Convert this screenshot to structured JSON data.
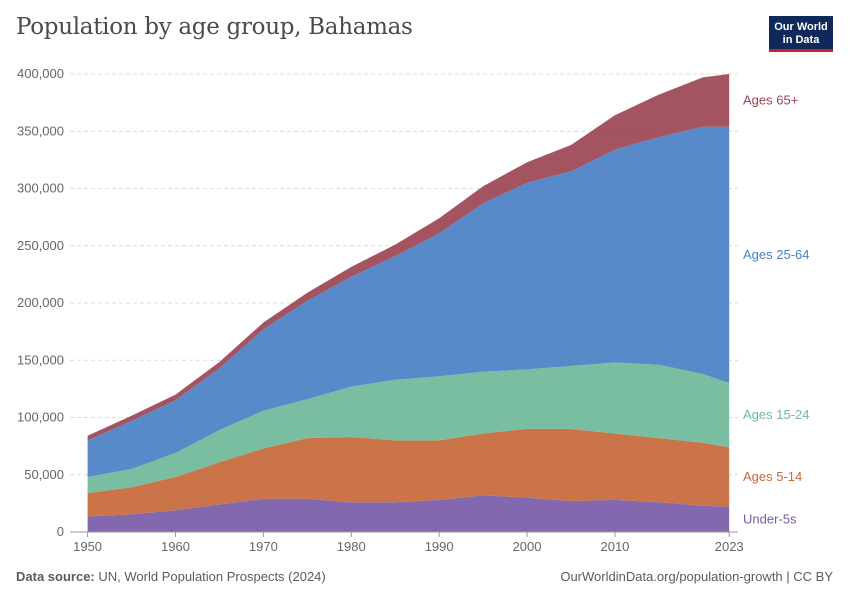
{
  "header": {
    "title": "Population by age group, Bahamas",
    "logo_line1": "Our World",
    "logo_line2": "in Data"
  },
  "footer": {
    "source_label": "Data source:",
    "source_text": "UN, World Population Prospects (2024)",
    "url_text": "OurWorldinData.org/population-growth | CC BY"
  },
  "chart_data": {
    "type": "area",
    "stacked": true,
    "title": "Population by age group, Bahamas",
    "x": [
      1950,
      1955,
      1960,
      1965,
      1970,
      1975,
      1980,
      1985,
      1990,
      1995,
      2000,
      2005,
      2010,
      2015,
      2020,
      2023
    ],
    "xticks": [
      1950,
      1960,
      1970,
      1980,
      1990,
      2000,
      2010,
      2023
    ],
    "xlim": [
      1948,
      2024
    ],
    "ylim": [
      0,
      400000
    ],
    "yticks": [
      0,
      50000,
      100000,
      150000,
      200000,
      250000,
      300000,
      350000,
      400000
    ],
    "ytick_labels": [
      "0",
      "50,000",
      "100,000",
      "150,000",
      "200,000",
      "250,000",
      "300,000",
      "350,000",
      "400,000"
    ],
    "grid": true,
    "legend": "right-inline",
    "series": [
      {
        "name": "Under-5s",
        "color": "#7a5ba8",
        "values": [
          13500,
          15500,
          19000,
          24000,
          29000,
          29000,
          26000,
          26000,
          28000,
          32000,
          30000,
          27000,
          28000,
          26000,
          23000,
          22000
        ]
      },
      {
        "name": "Ages 5-14",
        "color": "#c8683a",
        "values": [
          20500,
          23500,
          29000,
          37000,
          44000,
          53000,
          57000,
          54000,
          52000,
          54000,
          60000,
          63000,
          58000,
          56000,
          55000,
          52000
        ]
      },
      {
        "name": "Ages 15-24",
        "color": "#6fb99a",
        "values": [
          14000,
          16000,
          21000,
          28000,
          33000,
          34000,
          44000,
          53000,
          56000,
          54000,
          52000,
          55000,
          62000,
          64000,
          60000,
          56000
        ]
      },
      {
        "name": "Ages 25-64",
        "color": "#4a80c5",
        "values": [
          32000,
          42000,
          46000,
          54000,
          71000,
          86000,
          96000,
          108000,
          125000,
          147000,
          163000,
          170000,
          186000,
          199000,
          216000,
          224000
        ]
      },
      {
        "name": "Ages 65+",
        "color": "#9c4452",
        "values": [
          4000,
          4500,
          5000,
          5500,
          6000,
          7000,
          8500,
          10000,
          13000,
          15000,
          18000,
          23000,
          30000,
          37000,
          43000,
          46000
        ]
      }
    ]
  }
}
